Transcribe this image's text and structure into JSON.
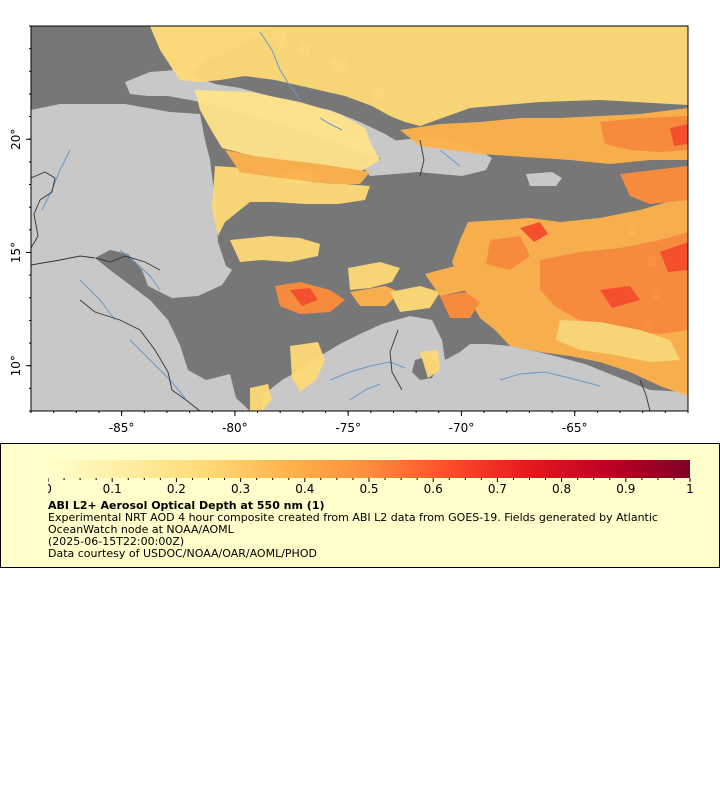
{
  "map": {
    "lon_labels": [
      "-85°",
      "-80°",
      "-75°",
      "-70°",
      "-65°"
    ],
    "lat_labels": [
      "20°",
      "15°",
      "10°"
    ],
    "extent": {
      "lon": [
        -89,
        -60
      ],
      "lat": [
        8,
        25
      ]
    },
    "colors": {
      "land": "#c8c8c8",
      "ocean": "#777777",
      "rivers": "#6699cc",
      "borders": "#333333"
    }
  },
  "legend": {
    "tick_labels": [
      "0",
      "0.1",
      "0.2",
      "0.3",
      "0.4",
      "0.5",
      "0.6",
      "0.7",
      "0.8",
      "0.9",
      "1"
    ],
    "range": [
      0,
      1
    ],
    "colors": [
      "#ffffcc",
      "#ffeda0",
      "#fed976",
      "#feb24c",
      "#fd8d3c",
      "#fc4e2a",
      "#e31a1c",
      "#bd0026",
      "#800026"
    ],
    "title": "ABI L2+ Aerosol Optical Depth at 550 nm (1)",
    "description": "Experimental NRT AOD 4 hour composite created from ABI L2 data from GOES-19. Fields generated by Atlantic OceanWatch node at NOAA/AOML",
    "time": "(2025-06-15T22:00:00Z)",
    "credit": "Data courtesy of USDOC/NOAA/OAR/AOML/PHOD"
  }
}
